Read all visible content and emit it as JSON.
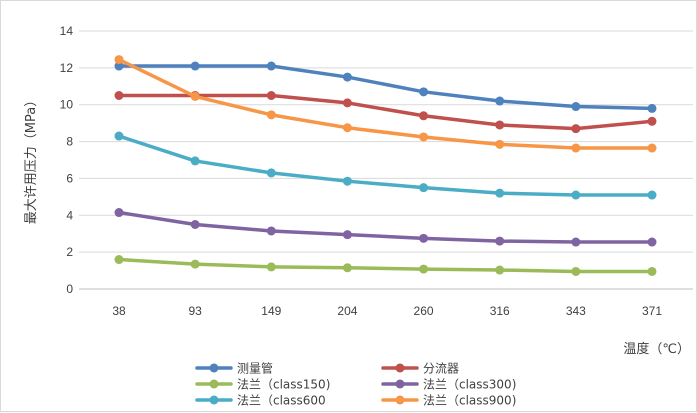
{
  "chart_data": {
    "type": "line",
    "title": "",
    "xlabel": "温度（℃）",
    "ylabel": "最大许用压力（MPa）",
    "categories": [
      "38",
      "93",
      "149",
      "204",
      "260",
      "316",
      "343",
      "371"
    ],
    "ylim": [
      0,
      14
    ],
    "yticks": [
      0,
      2,
      4,
      6,
      8,
      10,
      12,
      14
    ],
    "grid": "horizontal",
    "legend_position": "bottom",
    "series": [
      {
        "name": "测量管",
        "color": "#4f81bd",
        "values": [
          12.1,
          12.1,
          12.1,
          11.5,
          10.7,
          10.2,
          9.9,
          9.8
        ]
      },
      {
        "name": "分流器",
        "color": "#c0504d",
        "values": [
          10.5,
          10.5,
          10.5,
          10.1,
          9.4,
          8.9,
          8.7,
          9.1
        ]
      },
      {
        "name": "法兰（class150)",
        "color": "#9bbb59",
        "values": [
          1.6,
          1.35,
          1.2,
          1.15,
          1.08,
          1.03,
          0.95,
          0.95
        ]
      },
      {
        "name": "法兰（class300)",
        "color": "#8064a2",
        "values": [
          4.15,
          3.5,
          3.15,
          2.95,
          2.75,
          2.6,
          2.55,
          2.55
        ]
      },
      {
        "name": "法兰（class600",
        "color": "#4bacc6",
        "values": [
          8.3,
          6.95,
          6.3,
          5.85,
          5.5,
          5.2,
          5.1,
          5.1
        ]
      },
      {
        "name": "法兰（class900)",
        "color": "#f79646",
        "values": [
          12.45,
          10.45,
          9.45,
          8.75,
          8.25,
          7.85,
          7.65,
          7.65
        ]
      }
    ]
  }
}
